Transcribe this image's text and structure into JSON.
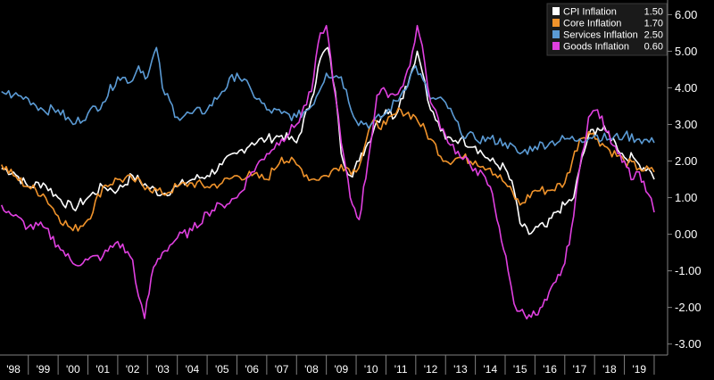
{
  "chart_data": {
    "type": "line",
    "title": "",
    "xlabel": "",
    "ylabel": "",
    "ylim": [
      -3.3,
      6.4
    ],
    "xlim": [
      1997.55,
      2019.95
    ],
    "grid": false,
    "legend_position": "top-right",
    "y_ticks": [
      "-3.00",
      "-2.00",
      "-1.00",
      "0.00",
      "1.00",
      "2.00",
      "3.00",
      "4.00",
      "5.00",
      "6.00"
    ],
    "y_tick_values": [
      -3,
      -2,
      -1,
      0,
      1,
      2,
      3,
      4,
      5,
      6
    ],
    "x_ticks": [
      "'98",
      "'99",
      "'00",
      "'01",
      "'02",
      "'03",
      "'04",
      "'05",
      "'06",
      "'07",
      "'08",
      "'09",
      "'10",
      "'11",
      "'12",
      "'13",
      "'14",
      "'15",
      "'16",
      "'17",
      "'18",
      "'19"
    ],
    "x_tick_values": [
      1998,
      1999,
      2000,
      2001,
      2002,
      2003,
      2004,
      2005,
      2006,
      2007,
      2008,
      2009,
      2010,
      2011,
      2012,
      2013,
      2014,
      2015,
      2016,
      2017,
      2018,
      2019
    ],
    "series": [
      {
        "name": "CPI Inflation",
        "last_value": "1.50",
        "color": "#ffffff",
        "x": [
          1997.6,
          1998.0,
          1998.5,
          1999.0,
          1999.5,
          2000.0,
          2000.5,
          2001.0,
          2001.5,
          2002.0,
          2002.5,
          2003.0,
          2003.5,
          2004.0,
          2004.5,
          2005.0,
          2005.5,
          2006.0,
          2006.5,
          2007.0,
          2007.5,
          2008.0,
          2008.3,
          2008.55,
          2008.8,
          2009.0,
          2009.3,
          2009.6,
          2009.9,
          2010.2,
          2010.5,
          2010.8,
          2011.0,
          2011.3,
          2011.55,
          2011.8,
          2012.0,
          2012.5,
          2013.0,
          2013.5,
          2014.0,
          2014.5,
          2014.8,
          2015.0,
          2015.3,
          2015.6,
          2015.9,
          2016.2,
          2016.5,
          2016.8,
          2017.0,
          2017.3,
          2017.6,
          2017.9,
          2018.2,
          2018.5,
          2018.8,
          2019.0,
          2019.3,
          2019.5
        ],
        "values": [
          1.8,
          1.7,
          1.3,
          1.4,
          1.0,
          0.7,
          1.0,
          1.3,
          1.2,
          1.6,
          1.3,
          1.1,
          1.3,
          1.5,
          1.6,
          1.9,
          2.2,
          2.5,
          2.6,
          2.7,
          2.5,
          3.7,
          4.8,
          5.1,
          3.9,
          2.2,
          1.6,
          2.0,
          2.5,
          3.1,
          3.4,
          3.2,
          3.7,
          4.3,
          5.0,
          4.2,
          3.4,
          2.6,
          2.6,
          2.4,
          2.0,
          1.8,
          1.2,
          0.3,
          0.0,
          0.2,
          0.2,
          0.6,
          0.8,
          1.0,
          1.8,
          2.7,
          2.9,
          2.8,
          2.5,
          2.1,
          2.1,
          1.9,
          1.8,
          1.5
        ]
      },
      {
        "name": "Core Inflation",
        "last_value": "1.70",
        "color": "#f0932b",
        "x": [
          1997.6,
          1998.0,
          1998.5,
          1999.0,
          1999.5,
          2000.0,
          2000.5,
          2001.0,
          2001.5,
          2002.0,
          2002.5,
          2003.0,
          2003.5,
          2004.0,
          2004.5,
          2005.0,
          2005.5,
          2006.0,
          2006.5,
          2007.0,
          2007.5,
          2008.0,
          2008.5,
          2009.0,
          2009.5,
          2010.0,
          2010.5,
          2011.0,
          2011.5,
          2012.0,
          2012.5,
          2013.0,
          2013.5,
          2014.0,
          2014.5,
          2015.0,
          2015.5,
          2016.0,
          2016.5,
          2017.0,
          2017.3,
          2017.6,
          2018.0,
          2018.5,
          2019.0,
          2019.5
        ],
        "values": [
          1.9,
          1.6,
          1.3,
          1.1,
          0.5,
          0.1,
          0.4,
          1.3,
          1.5,
          1.5,
          1.3,
          1.1,
          1.3,
          1.4,
          1.3,
          1.4,
          1.6,
          1.6,
          1.5,
          2.1,
          1.9,
          1.5,
          1.6,
          1.9,
          1.7,
          3.0,
          3.0,
          3.4,
          3.2,
          2.6,
          2.0,
          2.1,
          2.0,
          1.8,
          1.4,
          0.8,
          1.2,
          1.2,
          1.4,
          2.6,
          2.8,
          2.6,
          2.3,
          2.0,
          1.8,
          1.7
        ]
      },
      {
        "name": "Services Inflation",
        "last_value": "2.50",
        "color": "#5b9bd5",
        "x": [
          1997.6,
          1998.0,
          1998.5,
          1999.0,
          1999.5,
          2000.0,
          2000.5,
          2001.0,
          2001.5,
          2002.0,
          2002.2,
          2002.5,
          2002.8,
          2003.0,
          2003.5,
          2004.0,
          2004.5,
          2005.0,
          2005.5,
          2006.0,
          2006.5,
          2007.0,
          2007.5,
          2008.0,
          2008.5,
          2009.0,
          2009.5,
          2010.0,
          2010.5,
          2011.0,
          2011.5,
          2012.0,
          2012.5,
          2013.0,
          2013.5,
          2014.0,
          2014.5,
          2015.0,
          2015.5,
          2016.0,
          2016.5,
          2017.0,
          2017.5,
          2018.0,
          2018.5,
          2019.0,
          2019.5
        ],
        "values": [
          3.9,
          3.8,
          3.7,
          3.4,
          3.4,
          3.0,
          3.3,
          3.6,
          4.3,
          4.2,
          4.6,
          4.3,
          5.1,
          4.0,
          3.2,
          3.3,
          3.4,
          3.9,
          4.4,
          3.9,
          3.4,
          3.3,
          3.2,
          3.5,
          4.4,
          4.3,
          3.1,
          3.0,
          3.3,
          3.8,
          4.6,
          3.7,
          3.6,
          2.8,
          2.6,
          2.6,
          2.5,
          2.2,
          2.4,
          2.5,
          2.6,
          2.6,
          2.7,
          2.6,
          2.7,
          2.6,
          2.5
        ]
      },
      {
        "name": "Goods Inflation",
        "last_value": "0.60",
        "color": "#e040e0",
        "x": [
          1997.6,
          1998.0,
          1998.5,
          1999.0,
          1999.5,
          2000.0,
          2000.5,
          2001.0,
          2001.5,
          2002.0,
          2002.2,
          2002.4,
          2002.7,
          2003.0,
          2003.5,
          2004.0,
          2004.5,
          2005.0,
          2005.5,
          2006.0,
          2006.5,
          2007.0,
          2007.5,
          2008.0,
          2008.3,
          2008.5,
          2008.8,
          2009.0,
          2009.3,
          2009.6,
          2009.9,
          2010.2,
          2010.5,
          2010.8,
          2011.0,
          2011.3,
          2011.55,
          2011.8,
          2012.0,
          2012.5,
          2013.0,
          2013.5,
          2014.0,
          2014.3,
          2014.6,
          2014.8,
          2015.0,
          2015.3,
          2015.6,
          2015.9,
          2016.2,
          2016.5,
          2016.8,
          2017.0,
          2017.3,
          2017.6,
          2017.9,
          2018.2,
          2018.5,
          2018.8,
          2019.0,
          2019.3,
          2019.5
        ],
        "values": [
          0.8,
          0.5,
          0.2,
          0.2,
          -0.3,
          -0.8,
          -0.7,
          -0.6,
          -0.2,
          -0.7,
          -1.7,
          -2.3,
          -0.9,
          -0.5,
          -0.1,
          0.1,
          0.6,
          0.8,
          1.0,
          1.7,
          2.2,
          2.6,
          3.0,
          3.9,
          5.5,
          5.7,
          3.8,
          2.5,
          1.0,
          0.4,
          2.0,
          3.8,
          3.9,
          3.8,
          4.0,
          4.6,
          5.7,
          4.7,
          3.6,
          2.7,
          2.1,
          1.8,
          1.3,
          0.2,
          -1.0,
          -1.9,
          -2.1,
          -2.2,
          -2.2,
          -1.8,
          -1.3,
          -0.8,
          0.5,
          1.8,
          3.2,
          3.4,
          2.8,
          2.4,
          2.0,
          1.5,
          1.7,
          1.1,
          0.6
        ]
      }
    ]
  }
}
